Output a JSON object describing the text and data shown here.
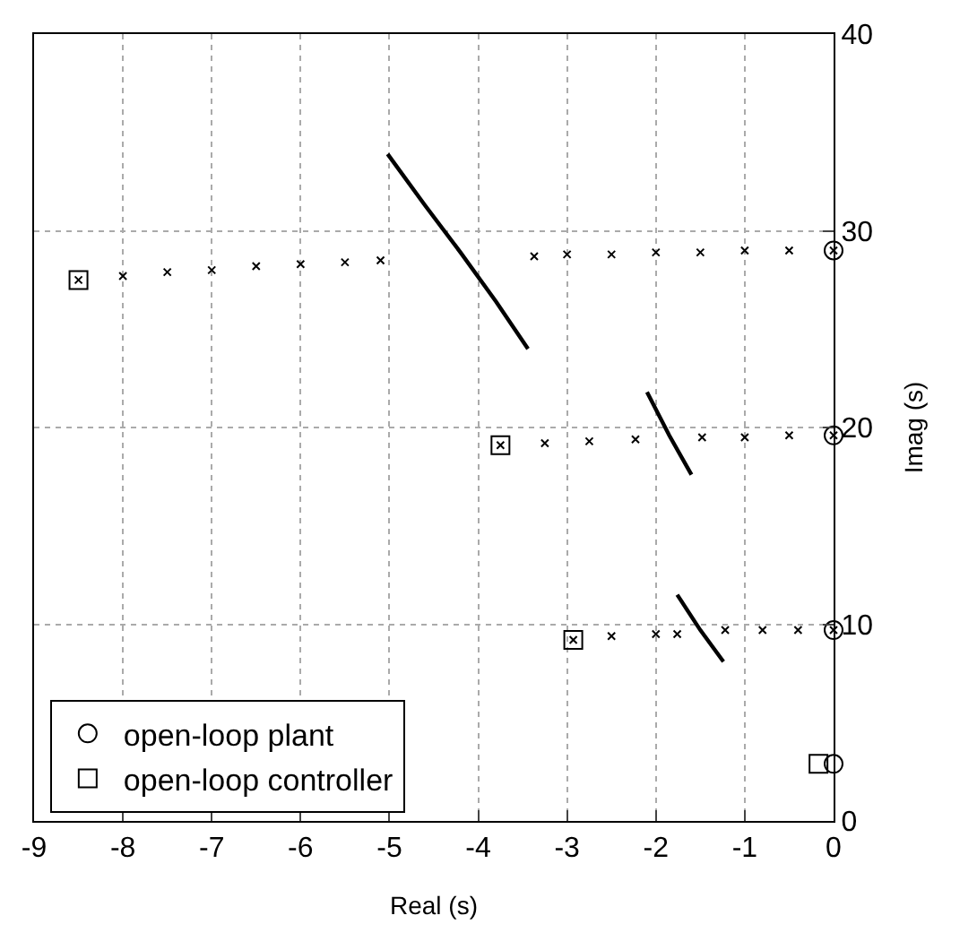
{
  "chart_data": {
    "type": "scatter",
    "xlabel": "Real (s)",
    "ylabel": "Imag (s)",
    "xlim": [
      -9,
      0
    ],
    "xticks": [
      -9,
      -8,
      -7,
      -6,
      -5,
      -4,
      -3,
      -2,
      -1,
      0
    ],
    "ylim": [
      0,
      40
    ],
    "yticks": [
      0,
      10,
      20,
      30,
      40
    ],
    "grid": true,
    "legend": "bottom left",
    "series": [
      {
        "name": "open-loop plant",
        "color": "#000000",
        "marker": "circle",
        "x": [
          0,
          0,
          0,
          0
        ],
        "values": [
          29.0,
          19.6,
          9.7,
          2.9
        ]
      },
      {
        "name": "open-loop controller",
        "color": "#000000",
        "marker": "square",
        "x": [
          -8.5,
          -3.75,
          -2.93,
          -0.17
        ],
        "values": [
          27.5,
          19.1,
          9.2,
          2.9
        ]
      },
      {
        "color": "#000000",
        "marker": "cross",
        "x": [
          -8.5,
          -8.0,
          -7.5,
          -7.0,
          -6.5,
          -6.0,
          -5.5,
          -5.1
        ],
        "values": [
          27.5,
          27.7,
          27.9,
          28.0,
          28.2,
          28.3,
          28.4,
          28.5
        ]
      },
      {
        "color": "#000000",
        "marker": "cross",
        "x": [
          -3.37,
          -3.0,
          -2.5,
          -2.0,
          -1.5,
          -1.0,
          -0.5,
          0
        ],
        "values": [
          28.7,
          28.8,
          28.8,
          28.9,
          28.9,
          29.0,
          29.0,
          29.0
        ]
      },
      {
        "color": "#000000",
        "marker": "cross",
        "x": [
          -3.75,
          -3.25,
          -2.75,
          -2.23
        ],
        "values": [
          19.1,
          19.2,
          19.3,
          19.4
        ]
      },
      {
        "color": "#000000",
        "marker": "cross",
        "x": [
          -1.48,
          -1.0,
          -0.5,
          0
        ],
        "values": [
          19.5,
          19.5,
          19.6,
          19.6
        ]
      },
      {
        "color": "#000000",
        "marker": "cross",
        "x": [
          -2.93,
          -2.5,
          -2.0,
          -1.76
        ],
        "values": [
          9.2,
          9.4,
          9.5,
          9.5
        ]
      },
      {
        "color": "#000000",
        "marker": "cross",
        "x": [
          -1.22,
          -0.8,
          -0.4,
          0
        ],
        "values": [
          9.7,
          9.7,
          9.7,
          9.7
        ]
      },
      {
        "type": "line",
        "color": "#000000",
        "marker": "none",
        "line_style": "solid",
        "x": [
          -5.02,
          -4.6,
          -4.2,
          -3.8,
          -3.44
        ],
        "values": [
          33.9,
          31.3,
          28.9,
          26.4,
          24.0
        ]
      },
      {
        "type": "line",
        "color": "#000000",
        "marker": "none",
        "line_style": "solid",
        "x": [
          -2.1,
          -1.85,
          -1.6
        ],
        "values": [
          21.8,
          19.6,
          17.6
        ]
      },
      {
        "type": "line",
        "color": "#000000",
        "marker": "none",
        "line_style": "solid",
        "x": [
          -1.76,
          -1.5,
          -1.24
        ],
        "values": [
          11.5,
          9.7,
          8.1
        ]
      }
    ]
  }
}
